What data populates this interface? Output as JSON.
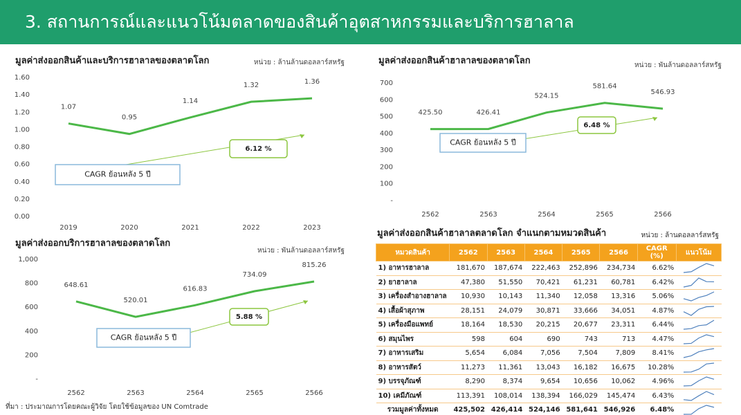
{
  "header": {
    "title": "3. สถานการณ์และแนวโน้มตลาดของสินค้าอุตสาหกรรมและบริการฮาลาล"
  },
  "chart_data": [
    {
      "type": "line",
      "title": "มูลค่าส่งออกสินค้าและบริการฮาลาลของตลาดโลก",
      "unit": "หน่วย : ล้านล้านดอลลาร์สหรัฐ",
      "categories": [
        "2019",
        "2020",
        "2021",
        "2022",
        "2023"
      ],
      "values": [
        1.07,
        0.95,
        1.14,
        1.32,
        1.36
      ],
      "color": "#4cb848",
      "ylim": [
        0,
        1.6
      ],
      "yticks": [
        {
          "value": 0,
          "label": "0.00"
        },
        {
          "value": 0.2,
          "label": "0.20"
        },
        {
          "value": 0.4,
          "label": "0.40"
        },
        {
          "value": 0.6,
          "label": "0.60"
        },
        {
          "value": 0.8,
          "label": "0.80"
        },
        {
          "value": 1,
          "label": "1.00"
        },
        {
          "value": 1.2,
          "label": "1.20"
        },
        {
          "value": 1.4,
          "label": "1.40"
        },
        {
          "value": 1.6,
          "label": "1.60"
        }
      ],
      "annotations": [
        "CAGR ย้อนหลัง 5 ปี",
        "6.12 %"
      ]
    },
    {
      "type": "line",
      "title": "มูลค่าส่งออกสินค้าฮาลาลของตลาดโลก",
      "unit": "หน่วย : พันล้านดอลลาร์สหรัฐ",
      "categories": [
        "2562",
        "2563",
        "2564",
        "2565",
        "2566"
      ],
      "values": [
        425.5,
        426.41,
        524.15,
        581.64,
        546.93
      ],
      "value_labels": [
        "425.50",
        "426.41",
        "524.15",
        "581.64",
        "546.93"
      ],
      "color": "#4cb848",
      "ylim": [
        0,
        700
      ],
      "yticks": [
        {
          "value": 0,
          "label": "-"
        },
        100,
        200,
        300,
        400,
        500,
        600,
        700
      ],
      "annotations": [
        "CAGR ย้อนหลัง 5 ปี",
        "6.48 %"
      ]
    },
    {
      "type": "line",
      "title": "มูลค่าส่งออกบริการฮาลาลของตลาดโลก",
      "unit": "หน่วย : พันล้านดอลลาร์สหรัฐ",
      "categories": [
        "2562",
        "2563",
        "2564",
        "2565",
        "2566"
      ],
      "values": [
        648.61,
        520.01,
        616.83,
        734.09,
        815.26
      ],
      "color": "#4cb848",
      "ylim": [
        0,
        1000
      ],
      "yticks": [
        {
          "value": 0,
          "label": "-"
        },
        200,
        400,
        600,
        800,
        {
          "value": 1000,
          "label": "1,000"
        }
      ],
      "annotations": [
        "CAGR ย้อนหลัง 5 ปี",
        "5.88 %"
      ]
    }
  ],
  "table": {
    "title": "มูลค่าส่งออกสินค้าฮาลาลตลาดโลก จำแนกตามหมวดสินค้า",
    "unit": "หน่วย : ล้านดอลลาร์สหรัฐ",
    "header": [
      "หมวดสินค้า",
      "2562",
      "2563",
      "2564",
      "2565",
      "2566",
      "CAGR (%)",
      "แนวโน้ม"
    ],
    "rows": [
      [
        "1) อาหารฮาลาล",
        "181,670",
        "187,674",
        "222,463",
        "252,896",
        "234,734",
        "6.62%"
      ],
      [
        "2) ยาฮาลาล",
        "47,380",
        "51,550",
        "70,421",
        "61,231",
        "60,781",
        "6.42%"
      ],
      [
        "3) เครื่องสำอางฮาลาล",
        "10,930",
        "10,143",
        "11,340",
        "12,058",
        "13,316",
        "5.06%"
      ],
      [
        "4) เสื้อผ้าสุภาพ",
        "28,151",
        "24,079",
        "30,871",
        "33,666",
        "34,051",
        "4.87%"
      ],
      [
        "5) เครื่องมือแพทย์",
        "18,164",
        "18,530",
        "20,215",
        "20,677",
        "23,311",
        "6.44%"
      ],
      [
        "6) สมุนไพร",
        "598",
        "604",
        "690",
        "743",
        "713",
        "4.47%"
      ],
      [
        "7) อาหารเสริม",
        "5,654",
        "6,084",
        "7,056",
        "7,504",
        "7,809",
        "8.41%"
      ],
      [
        "8) อาหารสัตว์",
        "11,273",
        "11,361",
        "13,043",
        "16,182",
        "16,675",
        "10.28%"
      ],
      [
        "9) บรรจุภัณฑ์",
        "8,290",
        "8,374",
        "9,654",
        "10,656",
        "10,062",
        "4.96%"
      ],
      [
        "10) เคมีภัณฑ์",
        "113,391",
        "108,014",
        "138,394",
        "166,029",
        "145,474",
        "6.43%"
      ],
      [
        "รวมมูลค่าทั้งหมด",
        "425,502",
        "426,414",
        "524,146",
        "581,641",
        "546,926",
        "6.48%"
      ]
    ]
  },
  "footer": {
    "source": "ที่มา : ประมาณการโดยคณะผู้วิจัย โดยใช้ข้อมูลของ UN Comtrade"
  }
}
